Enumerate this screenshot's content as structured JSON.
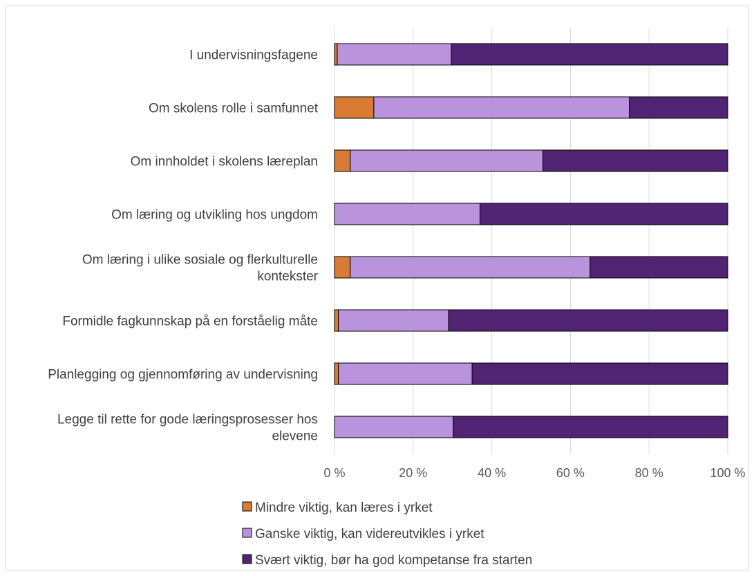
{
  "chart_data": {
    "type": "bar",
    "orientation": "horizontal",
    "stacked": "percent",
    "categories": [
      "I undervisningsfagene",
      "Om skolens rolle i samfunnet",
      "Om innholdet i skolens læreplan",
      "Om læring og utvikling hos ungdom",
      "Om læring i ulike sosiale og flerkulturelle kontekster",
      "Formidle fagkunnskap på en forståelig måte",
      "Planlegging og gjennomføring av undervisning",
      "Legge til rette for gode læringsprosesser hos elevene"
    ],
    "category_lines": [
      [
        "I undervisningsfagene"
      ],
      [
        "Om skolens rolle i samfunnet"
      ],
      [
        "Om innholdet i skolens læreplan"
      ],
      [
        "Om læring og utvikling hos ungdom"
      ],
      [
        "Om læring i ulike sosiale og flerkulturelle",
        "kontekster"
      ],
      [
        "Formidle fagkunnskap på en forståelig måte"
      ],
      [
        "Planlegging og gjennomføring av undervisning"
      ],
      [
        "Legge til rette for gode læringsprosesser hos",
        "elevene"
      ]
    ],
    "series": [
      {
        "name": "Mindre viktig, kan læres i yrket",
        "color": "#d97a35",
        "values": [
          0.7,
          10,
          4,
          0,
          4,
          1,
          1,
          0
        ]
      },
      {
        "name": "Ganske viktig, kan videreutvikles i yrket",
        "color": "#b994dc",
        "values": [
          29,
          65,
          49,
          37,
          61,
          28,
          34,
          30.2
        ]
      },
      {
        "name": "Svært viktig, bør ha god kompetanse fra starten",
        "color": "#512373",
        "values": [
          70.3,
          25,
          47,
          63,
          35,
          71,
          65,
          69.8
        ]
      }
    ],
    "xlim": [
      0,
      100
    ],
    "xticks": [
      "0 %",
      "20 %",
      "40 %",
      "60 %",
      "80 %",
      "100 %"
    ],
    "grid": true,
    "legend_position": "bottom"
  }
}
